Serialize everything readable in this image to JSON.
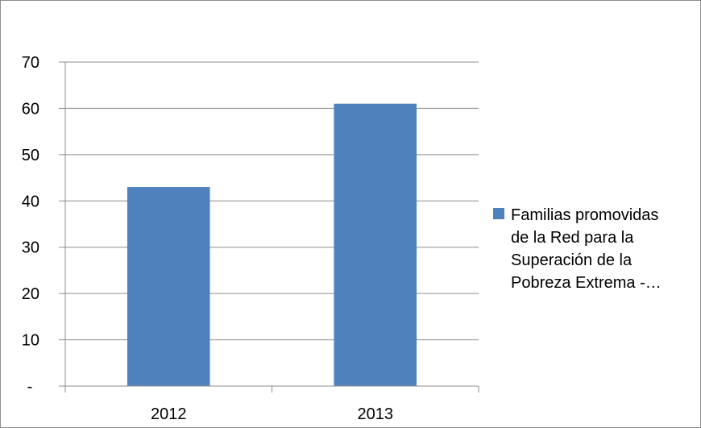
{
  "chart_data": {
    "type": "bar",
    "categories": [
      "2012",
      "2013"
    ],
    "series": [
      {
        "name": "Familias promovidas de la Red para la Superación de la Pobreza Extrema -…",
        "values": [
          43,
          61
        ],
        "color": "#4f81bd"
      }
    ],
    "ylim": [
      0,
      70
    ],
    "yticks": [
      "-",
      "10",
      "20",
      "30",
      "40",
      "50",
      "60",
      "70"
    ],
    "grid": true,
    "legend": "right",
    "legend_lines": [
      "Familias promovidas",
      "de la Red para la",
      "Superación de la",
      "Pobreza Extrema -…"
    ],
    "title": "",
    "xlabel": "",
    "ylabel": ""
  }
}
